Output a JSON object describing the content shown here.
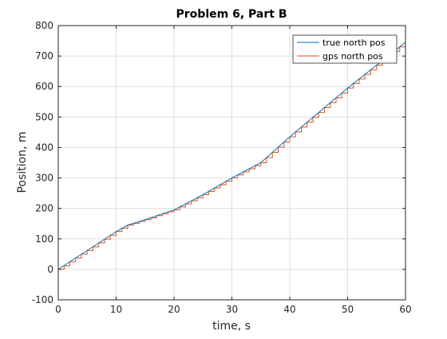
{
  "chart_data": {
    "type": "line",
    "title": "Problem 6, Part B",
    "xlabel": "time, s",
    "ylabel": "Position, m",
    "xlim": [
      0,
      60
    ],
    "ylim": [
      -100,
      800
    ],
    "xticks": [
      0,
      10,
      20,
      30,
      40,
      50,
      60
    ],
    "yticks": [
      -100,
      0,
      100,
      200,
      300,
      400,
      500,
      600,
      700,
      800
    ],
    "grid": true,
    "legend_position": "top-right",
    "series": [
      {
        "name": "true north pos",
        "style": "line",
        "color": "#0072BD",
        "x": [
          0,
          5,
          10,
          12,
          15,
          20,
          25,
          30,
          35,
          40,
          45,
          50,
          55,
          60
        ],
        "y": [
          0,
          62,
          124,
          145,
          163,
          195,
          245,
          300,
          350,
          435,
          515,
          595,
          670,
          745
        ]
      },
      {
        "name": "gps north pos",
        "style": "step",
        "color": "#D95319",
        "sample_interval": 1,
        "x": [
          0,
          1,
          2,
          3,
          4,
          5,
          6,
          7,
          8,
          9,
          10,
          11,
          12,
          13,
          14,
          15,
          16,
          17,
          18,
          19,
          20,
          21,
          22,
          23,
          24,
          25,
          26,
          27,
          28,
          29,
          30,
          31,
          32,
          33,
          34,
          35,
          36,
          37,
          38,
          39,
          40,
          41,
          42,
          43,
          44,
          45,
          46,
          47,
          48,
          49,
          50,
          51,
          52,
          53,
          54,
          55,
          56,
          57,
          58,
          59
        ],
        "y": [
          0,
          12,
          25,
          37,
          50,
          62,
          74,
          87,
          99,
          112,
          124,
          135,
          145,
          151,
          157,
          163,
          169,
          176,
          182,
          189,
          195,
          205,
          215,
          225,
          235,
          245,
          256,
          267,
          278,
          289,
          300,
          310,
          320,
          330,
          340,
          350,
          367,
          384,
          401,
          418,
          435,
          451,
          467,
          483,
          499,
          515,
          531,
          547,
          563,
          579,
          595,
          610,
          625,
          640,
          655,
          670,
          685,
          700,
          715,
          730
        ]
      }
    ]
  }
}
